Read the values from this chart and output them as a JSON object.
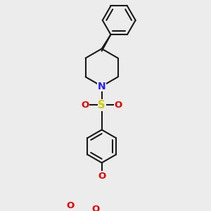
{
  "bg_color": "#ececec",
  "bond_color": "#1a1a1a",
  "N_color": "#2222ff",
  "O_color": "#ee0000",
  "S_color": "#cccc00",
  "lw": 1.5,
  "dbo": 4.5,
  "fs": 9.5,
  "fig_w": 3.0,
  "fig_h": 3.0,
  "dpi": 100,
  "xlim": [
    -80,
    80
  ],
  "ylim": [
    -130,
    110
  ]
}
